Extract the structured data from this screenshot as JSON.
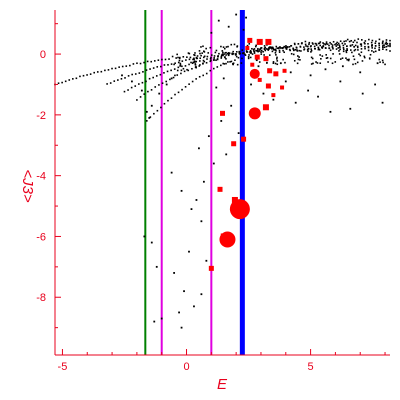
{
  "chart_data": {
    "type": "scatter",
    "title": "",
    "xlabel": "E",
    "ylabel": "<J3>",
    "xlim": [
      -5.3,
      8.2
    ],
    "ylim": [
      -9.9,
      1.45
    ],
    "x_ticks": [
      {
        "value": -5,
        "label": "-5"
      },
      {
        "value": 0,
        "label": "0"
      },
      {
        "value": 5,
        "label": "5"
      }
    ],
    "y_ticks": [
      {
        "value": 0,
        "label": "0"
      },
      {
        "value": -2,
        "label": "-2"
      },
      {
        "value": -4,
        "label": "-4"
      },
      {
        "value": -6,
        "label": "-6"
      },
      {
        "value": -8,
        "label": "-8"
      }
    ],
    "grid": false,
    "vertical_lines": [
      {
        "x": -1.66,
        "color": "#008000",
        "width": 2
      },
      {
        "x": -1.0,
        "color": "#e000e0",
        "width": 2
      },
      {
        "x": 1.0,
        "color": "#e000e0",
        "width": 2
      },
      {
        "x": 2.25,
        "color": "#0000ff",
        "width": 5
      }
    ],
    "series": [
      {
        "color": "#000000",
        "marker_size": 1.6,
        "bands": [
          {
            "x0": -5.3,
            "y0": -1.0,
            "x1": 8.2,
            "y1": 0.15,
            "kind": "arc",
            "count": 95
          },
          {
            "x0": -3.2,
            "y0": -1.0,
            "x1": 8.2,
            "y1": 0.22,
            "kind": "arc",
            "count": 80
          },
          {
            "x0": -2.5,
            "y0": -1.25,
            "x1": 8.2,
            "y1": 0.3,
            "kind": "arc",
            "count": 75
          },
          {
            "x0": -2.0,
            "y0": -1.5,
            "x1": 8.2,
            "y1": 0.38,
            "kind": "arc",
            "count": 70
          },
          {
            "x0": -1.6,
            "y0": -2.2,
            "x1": 8.2,
            "y1": 0.45,
            "kind": "arc",
            "count": 70
          }
        ],
        "points": [
          [
            -1.7,
            -6.0
          ],
          [
            -1.4,
            -6.2
          ],
          [
            -1.2,
            -7.0
          ],
          [
            -1.3,
            -8.8
          ],
          [
            -1.0,
            -8.7
          ],
          [
            -0.3,
            -8.5
          ],
          [
            -0.2,
            -9.0
          ],
          [
            -0.5,
            -7.2
          ],
          [
            -0.1,
            -7.8
          ],
          [
            0.1,
            -6.5
          ],
          [
            0.2,
            -5.1
          ],
          [
            0.4,
            -4.8
          ],
          [
            0.5,
            -3.1
          ],
          [
            -0.2,
            -4.5
          ],
          [
            0.6,
            -5.5
          ],
          [
            0.8,
            -6.8
          ],
          [
            0.6,
            -7.9
          ],
          [
            0.3,
            -8.3
          ],
          [
            0.9,
            -2.7
          ],
          [
            1.1,
            -3.6
          ],
          [
            1.4,
            -2.2
          ],
          [
            1.6,
            -3.3
          ],
          [
            1.8,
            -1.7
          ],
          [
            2.1,
            -2.6
          ],
          [
            0.7,
            -4.2
          ],
          [
            -0.6,
            -3.9
          ],
          [
            1.2,
            -1.1
          ],
          [
            1.5,
            -0.8
          ],
          [
            2.6,
            -1.0
          ],
          [
            3.1,
            -1.3
          ],
          [
            3.5,
            -1.5
          ],
          [
            4.0,
            -0.9
          ],
          [
            4.4,
            -1.6
          ],
          [
            4.9,
            -1.2
          ],
          [
            5.3,
            -1.4
          ],
          [
            5.8,
            -1.9
          ],
          [
            6.2,
            -0.9
          ],
          [
            6.6,
            -1.8
          ],
          [
            7.1,
            -1.3
          ],
          [
            7.6,
            -1.0
          ],
          [
            7.9,
            -1.6
          ],
          [
            2.9,
            -0.4
          ],
          [
            3.3,
            -0.5
          ],
          [
            3.8,
            -0.3
          ],
          [
            4.2,
            -0.6
          ],
          [
            5.0,
            -0.7
          ],
          [
            5.6,
            -0.5
          ],
          [
            6.3,
            -0.4
          ],
          [
            7.0,
            -0.6
          ],
          [
            7.7,
            -0.3
          ],
          [
            1.0,
            0.7
          ],
          [
            1.3,
            1.1
          ],
          [
            1.7,
            0.9
          ],
          [
            2.0,
            1.3
          ],
          [
            2.3,
            0.8
          ],
          [
            2.4,
            1.2
          ],
          [
            -1.4,
            -1.7
          ],
          [
            -1.6,
            -1.9
          ],
          [
            -1.5,
            -2.1
          ],
          [
            -1.8,
            -1.2
          ],
          [
            -2.2,
            -0.9
          ],
          [
            -2.6,
            -0.7
          ],
          [
            -1.1,
            -1.3
          ],
          [
            -0.8,
            -1.0
          ],
          [
            -0.6,
            -0.8
          ]
        ]
      },
      {
        "color": "#ff0000",
        "points": [
          {
            "x": 2.15,
            "y": -5.1,
            "r": 10
          },
          {
            "x": 1.65,
            "y": -6.1,
            "r": 8
          },
          {
            "x": 2.75,
            "y": -1.95,
            "r": 6
          },
          {
            "x": 2.75,
            "y": -0.65,
            "r": 5
          },
          {
            "x": 3.2,
            "y": -1.75,
            "r": 3
          },
          {
            "x": 1.95,
            "y": -4.8,
            "r": 3
          },
          {
            "x": 1.5,
            "y": -6.0,
            "r": 3
          },
          {
            "x": 1.0,
            "y": -7.05,
            "r": 2.5
          },
          {
            "x": 1.35,
            "y": -4.45,
            "r": 2.5
          },
          {
            "x": 2.3,
            "y": -2.8,
            "r": 2.5
          },
          {
            "x": 1.9,
            "y": -2.95,
            "r": 2.5
          },
          {
            "x": 1.45,
            "y": -1.95,
            "r": 2.5
          },
          {
            "x": 2.95,
            "y": 0.4,
            "r": 3
          },
          {
            "x": 3.3,
            "y": 0.4,
            "r": 3
          },
          {
            "x": 2.55,
            "y": 0.45,
            "r": 2.5
          },
          {
            "x": 2.85,
            "y": -0.1,
            "r": 2.5
          },
          {
            "x": 3.2,
            "y": -0.15,
            "r": 2.5
          },
          {
            "x": 3.35,
            "y": -0.55,
            "r": 2.5
          },
          {
            "x": 3.6,
            "y": -0.65,
            "r": 2.5
          },
          {
            "x": 3.3,
            "y": -1.05,
            "r": 2.5
          },
          {
            "x": 3.5,
            "y": -1.35,
            "r": 2
          },
          {
            "x": 3.85,
            "y": -1.1,
            "r": 2
          },
          {
            "x": 2.65,
            "y": -0.35,
            "r": 2
          },
          {
            "x": 2.45,
            "y": 0.2,
            "r": 2
          },
          {
            "x": 3.95,
            "y": -0.55,
            "r": 2
          },
          {
            "x": 2.95,
            "y": -0.85,
            "r": 2
          }
        ]
      }
    ]
  }
}
